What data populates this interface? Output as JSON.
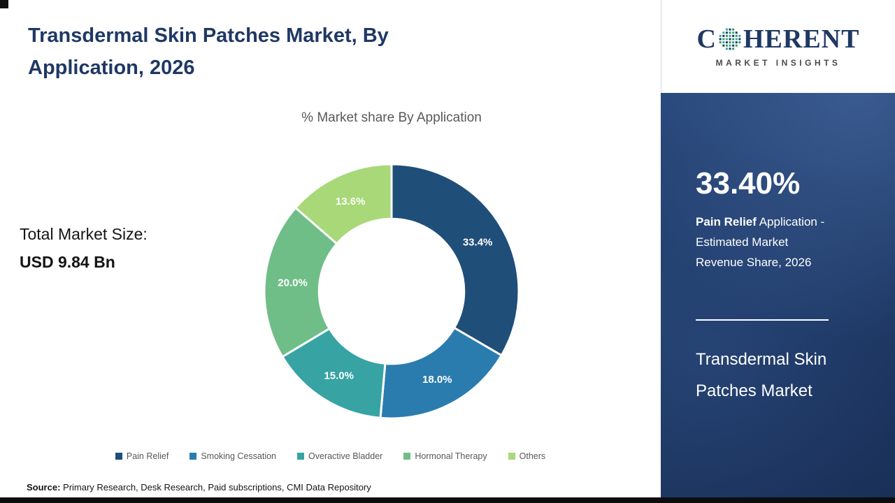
{
  "header": {
    "title_line1": "Transdermal Skin Patches Market,  By",
    "title_line2": "Application, 2026"
  },
  "chart_data": {
    "type": "pie",
    "variant": "donut",
    "title": "% Market share  By Application",
    "categories": [
      "Pain Relief",
      "Smoking Cessation",
      "Overactive Bladder",
      "Hormonal Therapy",
      "Others"
    ],
    "values": [
      33.4,
      18.0,
      15.0,
      20.0,
      13.6
    ],
    "labels": [
      "33.4%",
      "18.0%",
      "15.0%",
      "20.0%",
      "13.6%"
    ],
    "colors": [
      "#1f4e79",
      "#2b7cae",
      "#38a3a3",
      "#6fbe87",
      "#a8d878"
    ],
    "start_angle_deg": 0,
    "direction": "clockwise",
    "inner_radius_ratio": 0.57,
    "legend_position": "bottom"
  },
  "market_size": {
    "label": "Total Market Size:",
    "value": "USD 9.84 Bn"
  },
  "source": {
    "label": "Source:",
    "text": " Primary Research, Desk Research, Paid subscriptions, CMI Data Repository"
  },
  "logo": {
    "brand_c": "C",
    "brand_rest": "HERENT",
    "tagline": "MARKET INSIGHTS",
    "dot_colors": [
      "#1f3864",
      "#2e9e55",
      "#38a3a3"
    ]
  },
  "sidebar": {
    "stat_value": "33.40%",
    "stat_bold": "Pain Relief",
    "stat_line1_rest": " Application -",
    "stat_line2": "Estimated Market",
    "stat_line3": "Revenue Share, 2026",
    "panel_title": "Transdermal Skin Patches Market",
    "panel_bg": "#1f3a68"
  }
}
